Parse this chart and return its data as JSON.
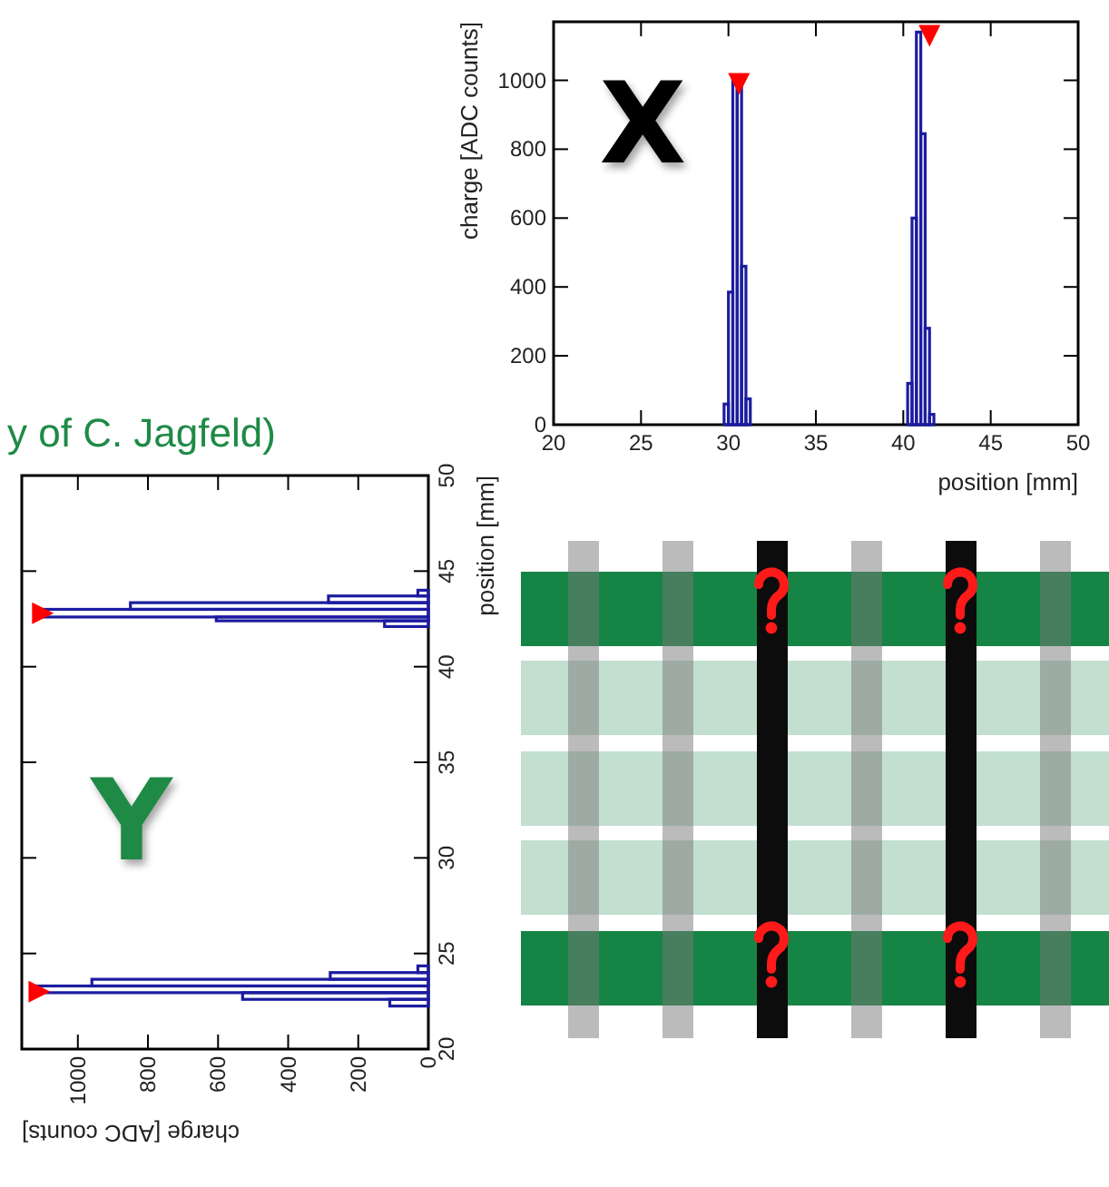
{
  "chart_data": [
    {
      "type": "histogram",
      "xlabel": "position [mm]",
      "ylabel": "charge [ADC counts]",
      "annotations": [
        "X",
        "y of C. Jagfeld)"
      ],
      "bins": [
        29.75,
        30,
        30.25,
        30.5,
        30.75,
        31,
        31.25,
        40.25,
        40.5,
        40.75,
        41,
        41.25,
        41.5,
        41.75
      ],
      "series": [
        {
          "color": "#1c1ca0",
          "values": [
            60,
            385,
            1000,
            990,
            460,
            75,
            0,
            120,
            600,
            1140,
            845,
            280,
            30
          ]
        },
        {
          "type": "scatter",
          "color": "#ff0000",
          "marker": "triangle",
          "x": [
            30.6,
            41.5
          ],
          "values": [
            1000,
            1140
          ]
        }
      ],
      "xlim": [
        20,
        50
      ],
      "xticks": [
        20,
        25,
        30,
        35,
        40,
        45,
        50
      ],
      "ylim": [
        0,
        1170
      ],
      "yticks": [
        0,
        200,
        400,
        600,
        800,
        1000
      ]
    },
    {
      "type": "histogram",
      "orientation": "horizontal",
      "ylabel": "position [mm]",
      "xlabel": "charge [ADC counts]",
      "annotations": [
        "Y"
      ],
      "bins": [
        22.25,
        22.6,
        22.95,
        23.3,
        23.65,
        24.0,
        24.35,
        42.1,
        42.4,
        42.6,
        43.0,
        43.35,
        43.7,
        44.0
      ],
      "series": [
        {
          "color": "#1c1ca0",
          "values": [
            110,
            530,
            1120,
            960,
            280,
            30,
            0,
            125,
            605,
            1110,
            850,
            285,
            30
          ]
        },
        {
          "type": "scatter",
          "color": "#ff0000",
          "marker": "triangle",
          "x": [
            23,
            42.8
          ],
          "values": [
            1120,
            1110
          ]
        }
      ],
      "xlim": [
        1160,
        0
      ],
      "xticks": [
        0,
        200,
        400,
        600,
        800,
        1000
      ],
      "ylim": [
        20,
        50
      ],
      "yticks": [
        20,
        25,
        30,
        35,
        40,
        45,
        50
      ]
    }
  ]
}
